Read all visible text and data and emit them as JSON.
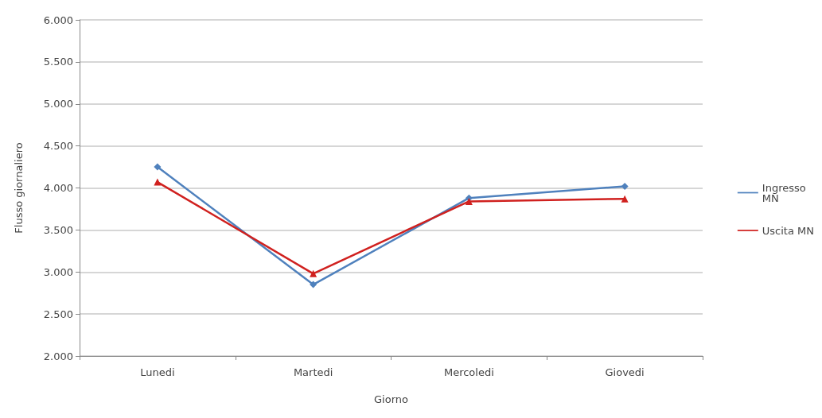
{
  "chart_data": {
    "type": "line",
    "xlabel": "Giorno",
    "ylabel": "Flusso giornaliero",
    "categories": [
      "Lunedi",
      "Martedi",
      "Mercoledi",
      "Giovedi"
    ],
    "series": [
      {
        "name": "Ingresso MN",
        "color": "#4f81bd",
        "marker": "diamond",
        "values": [
          4250,
          2850,
          3880,
          4020
        ]
      },
      {
        "name": "Uscita MN",
        "color": "#d0211f",
        "marker": "triangle",
        "values": [
          4070,
          2980,
          3840,
          3870
        ]
      }
    ],
    "ylim": [
      2000,
      6000
    ],
    "yticks": [
      {
        "value": 2000,
        "label": "2.000"
      },
      {
        "value": 2500,
        "label": "2.500"
      },
      {
        "value": 3000,
        "label": "3.000"
      },
      {
        "value": 3500,
        "label": "3.500"
      },
      {
        "value": 4000,
        "label": "4.000"
      },
      {
        "value": 4500,
        "label": "4.500"
      },
      {
        "value": 5000,
        "label": "5.000"
      },
      {
        "value": 5500,
        "label": "5.500"
      },
      {
        "value": 6000,
        "label": "6.000"
      }
    ],
    "grid": "y",
    "legend": "right",
    "line_style": "solid"
  }
}
